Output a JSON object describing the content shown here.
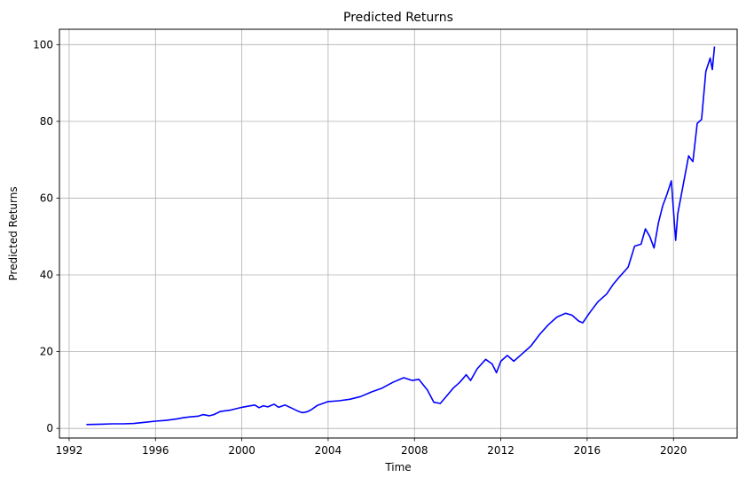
{
  "chart_data": {
    "type": "line",
    "title": "Predicted Returns",
    "xlabel": "Time",
    "ylabel": "Predicted Returns",
    "xlim": [
      1991.55,
      2022.95
    ],
    "ylim": [
      -2.5,
      104
    ],
    "x_ticks": [
      1992,
      1996,
      2000,
      2004,
      2008,
      2012,
      2016,
      2020
    ],
    "y_ticks": [
      0,
      20,
      40,
      60,
      80,
      100
    ],
    "grid": true,
    "line_color": "#0000ff",
    "series": [
      {
        "x": [
          1992.8,
          1993.5,
          1994.0,
          1994.5,
          1995.0,
          1995.5,
          1996.0,
          1996.5,
          1997.0,
          1997.3,
          1997.6,
          1998.0,
          1998.2,
          1998.5,
          1998.7,
          1999.0,
          1999.5,
          2000.0,
          2000.3,
          2000.6,
          2000.8,
          2001.0,
          2001.2,
          2001.5,
          2001.7,
          2002.0,
          2002.3,
          2002.6,
          2002.8,
          2003.0,
          2003.2,
          2003.5,
          2004.0,
          2004.5,
          2005.0,
          2005.5,
          2006.0,
          2006.5,
          2007.0,
          2007.5,
          2007.9,
          2008.2,
          2008.6,
          2008.9,
          2009.2,
          2009.5,
          2009.8,
          2010.1,
          2010.4,
          2010.6,
          2010.9,
          2011.3,
          2011.6,
          2011.8,
          2012.0,
          2012.3,
          2012.6,
          2013.0,
          2013.4,
          2013.8,
          2014.2,
          2014.6,
          2015.0,
          2015.3,
          2015.6,
          2015.8,
          2016.1,
          2016.5,
          2016.9,
          2017.2,
          2017.5,
          2017.9,
          2018.2,
          2018.5,
          2018.7,
          2018.9,
          2019.1,
          2019.3,
          2019.5,
          2019.7,
          2019.9,
          2020.1,
          2020.2,
          2020.4,
          2020.7,
          2020.9,
          2021.1,
          2021.3,
          2021.5,
          2021.7,
          2021.8,
          2021.9
        ],
        "y": [
          1.0,
          1.1,
          1.2,
          1.2,
          1.3,
          1.6,
          1.9,
          2.1,
          2.5,
          2.8,
          3.0,
          3.2,
          3.6,
          3.3,
          3.6,
          4.4,
          4.8,
          5.5,
          5.8,
          6.1,
          5.4,
          5.9,
          5.6,
          6.3,
          5.5,
          6.1,
          5.3,
          4.5,
          4.1,
          4.3,
          4.8,
          6.0,
          7.0,
          7.2,
          7.6,
          8.3,
          9.5,
          10.5,
          12.0,
          13.2,
          12.5,
          12.8,
          10.0,
          6.8,
          6.5,
          8.5,
          10.5,
          12.0,
          14.0,
          12.5,
          15.5,
          18.0,
          16.8,
          14.5,
          17.5,
          19.0,
          17.5,
          19.5,
          21.5,
          24.5,
          27.0,
          29.0,
          30.0,
          29.5,
          28.0,
          27.5,
          30.0,
          33.0,
          35.0,
          37.5,
          39.5,
          42.0,
          47.5,
          48.0,
          52.0,
          50.0,
          47.0,
          53.5,
          58.0,
          61.0,
          64.5,
          49.0,
          56.0,
          62.0,
          71.0,
          69.5,
          79.5,
          80.5,
          93.0,
          96.5,
          93.5,
          99.5
        ]
      }
    ]
  }
}
